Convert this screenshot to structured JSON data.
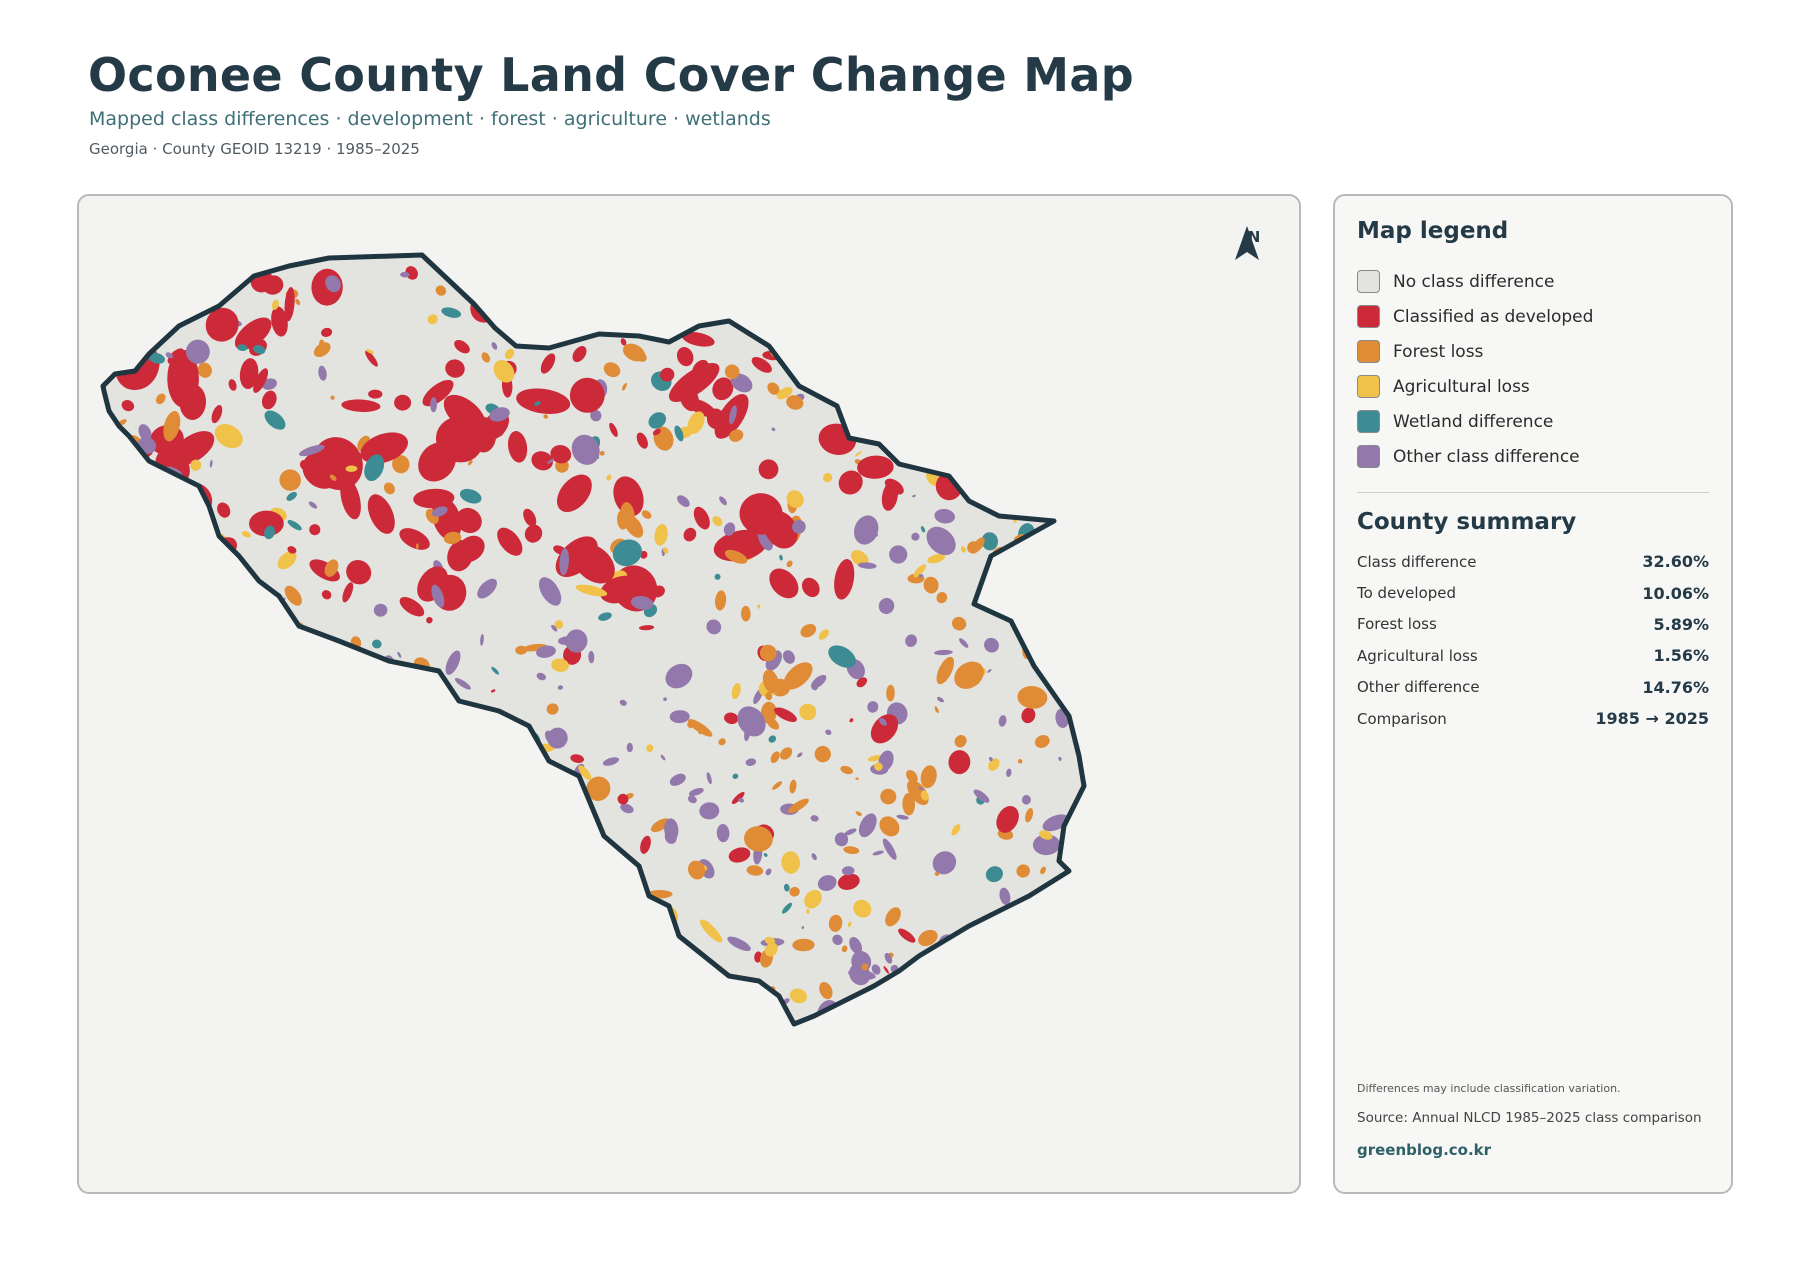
{
  "header": {
    "title": "Oconee County Land Cover Change Map",
    "subtitle": "Mapped class differences · development · forest · agriculture · wetlands",
    "meta": "Georgia · County GEOID 13219 · 1985–2025"
  },
  "map": {
    "north_label": "N",
    "colors": {
      "no_change": "#e3e3df",
      "developed": "#cc2a39",
      "forest_loss": "#e08b36",
      "agricultural_loss": "#f1c24a",
      "wetland": "#3e8c93",
      "other": "#9378ab",
      "border": "#1f3540",
      "background": "#f3f3f1"
    }
  },
  "legend": {
    "title": "Map legend",
    "items": [
      {
        "label": "No class difference",
        "color": "#e3e3df"
      },
      {
        "label": "Classified as developed",
        "color": "#cc2a39"
      },
      {
        "label": "Forest loss",
        "color": "#e08b36"
      },
      {
        "label": "Agricultural loss",
        "color": "#f1c24a"
      },
      {
        "label": "Wetland difference",
        "color": "#3e8c93"
      },
      {
        "label": "Other class difference",
        "color": "#9378ab"
      }
    ]
  },
  "summary": {
    "title": "County summary",
    "rows": [
      {
        "label": "Class difference",
        "value": "32.60%"
      },
      {
        "label": "To developed",
        "value": "10.06%"
      },
      {
        "label": "Forest loss",
        "value": "5.89%"
      },
      {
        "label": "Agricultural loss",
        "value": "1.56%"
      },
      {
        "label": "Other difference",
        "value": "14.76%"
      },
      {
        "label": "Comparison",
        "value": "1985 → 2025"
      }
    ]
  },
  "footer": {
    "note": "Differences may include classification variation.",
    "source": "Source: Annual NLCD 1985–2025 class comparison",
    "site": "greenblog.co.kr"
  }
}
